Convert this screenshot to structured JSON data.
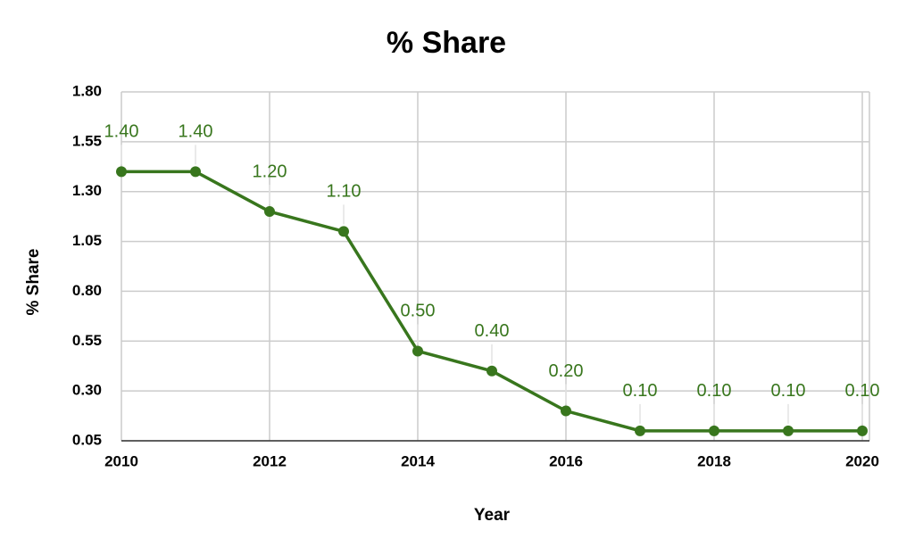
{
  "chart_data": {
    "type": "line",
    "title": "% Share",
    "x_label": "Year",
    "y_label": "% Share",
    "x": [
      2010,
      2011,
      2012,
      2013,
      2014,
      2015,
      2016,
      2017,
      2018,
      2019,
      2020
    ],
    "series": [
      {
        "name": "% Share",
        "color": "#38761d",
        "values": [
          1.4,
          1.4,
          1.2,
          1.1,
          0.5,
          0.4,
          0.2,
          0.1,
          0.1,
          0.1,
          0.1
        ],
        "value_labels": [
          "1.40",
          "1.40",
          "1.20",
          "1.10",
          "0.50",
          "0.40",
          "0.20",
          "0.10",
          "0.10",
          "0.10",
          "0.10"
        ]
      }
    ],
    "xlim": [
      2010,
      2020
    ],
    "xticks": [
      2010,
      2012,
      2014,
      2016,
      2018,
      2020
    ],
    "ylim": [
      0.05,
      1.8
    ],
    "yticks": [
      {
        "value": 0.05,
        "label": "0.05"
      },
      {
        "value": 0.3,
        "label": "0.30"
      },
      {
        "value": 0.55,
        "label": "0.55"
      },
      {
        "value": 0.8,
        "label": "0.80"
      },
      {
        "value": 1.05,
        "label": "1.05"
      },
      {
        "value": 1.3,
        "label": "1.30"
      },
      {
        "value": 1.55,
        "label": "1.55"
      },
      {
        "value": 1.8,
        "label": "1.80"
      }
    ],
    "grid": true
  }
}
